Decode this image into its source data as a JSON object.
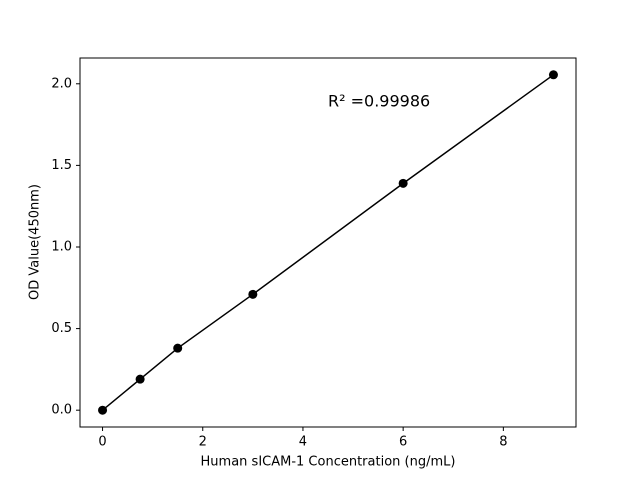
{
  "chart_data": {
    "type": "line",
    "xlabel": "Human sICAM-1 Concentration (ng/mL)",
    "ylabel": "OD Value(450nm)",
    "annotation": "R² =0.99986",
    "x": [
      0,
      0.75,
      1.5,
      3,
      6,
      9
    ],
    "series": [
      {
        "color": "#000000",
        "values": [
          0.0,
          0.19,
          0.38,
          0.71,
          1.39,
          2.055
        ]
      }
    ],
    "xlim": [
      -0.45,
      9.45
    ],
    "ylim": [
      -0.103,
      2.158
    ],
    "xticks": [
      0,
      2,
      4,
      6,
      8
    ],
    "yticks": [
      {
        "value": 0,
        "label": "0.0"
      },
      {
        "value": 0.5,
        "label": "0.5"
      },
      {
        "value": 1,
        "label": "1.0"
      },
      {
        "value": 1.5,
        "label": "1.5"
      },
      {
        "value": 2,
        "label": "2.0"
      }
    ],
    "grid": false
  }
}
